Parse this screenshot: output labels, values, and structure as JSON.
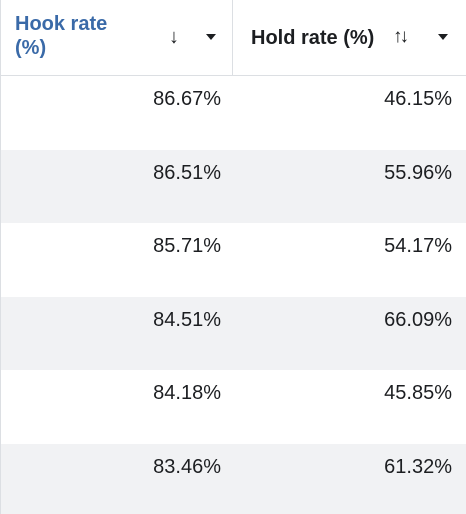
{
  "columns": [
    {
      "title": "Hook rate (%)",
      "sort_icon": "↓"
    },
    {
      "title": "Hold rate (%)",
      "sort_icon": "↑↓"
    }
  ],
  "rows": [
    {
      "hook": "86.67%",
      "hold": "46.15%"
    },
    {
      "hook": "86.51%",
      "hold": "55.96%"
    },
    {
      "hook": "85.71%",
      "hold": "54.17%"
    },
    {
      "hook": "84.51%",
      "hold": "66.09%"
    },
    {
      "hook": "84.18%",
      "hold": "45.85%"
    },
    {
      "hook": "83.46%",
      "hold": "61.32%"
    }
  ],
  "colors": {
    "active_header": "#3a6aa8",
    "text": "#1c1e21",
    "row_alt": "#f1f2f4",
    "border": "#dcdfe3"
  }
}
